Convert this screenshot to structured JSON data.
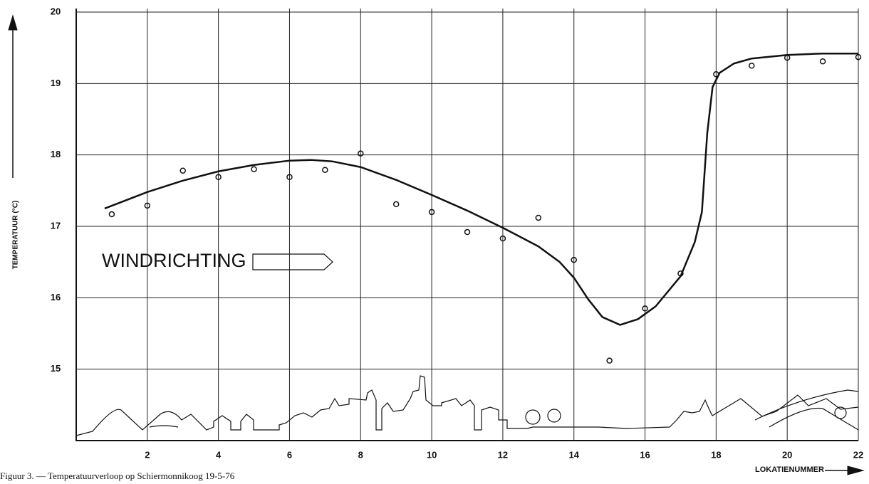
{
  "chart_data": {
    "type": "scatter",
    "ylabel": "TEMPERATUUR (°C)",
    "xlabel": "LOKATIENUMMER",
    "annotation": "WINDRICHTING",
    "caption": "Figuur 3. — Temperatuurverloop op Schiermonnikoog 19-5-76",
    "xlim": [
      0,
      22
    ],
    "xticks": [
      2,
      4,
      6,
      8,
      10,
      12,
      14,
      16,
      18,
      20,
      22
    ],
    "ylim": [
      14,
      20
    ],
    "yticks": [
      15,
      16,
      17,
      18,
      19,
      20
    ],
    "grid": true,
    "series": [
      {
        "type": "scatter",
        "color": "#111",
        "x": [
          1,
          2,
          3,
          4,
          5,
          6,
          7,
          8,
          9,
          10,
          11,
          12,
          13,
          14,
          15,
          16,
          17,
          18,
          19,
          20,
          21,
          22
        ],
        "values": [
          17.17,
          17.29,
          17.78,
          17.69,
          17.8,
          17.69,
          17.79,
          18.02,
          17.31,
          17.2,
          16.92,
          16.83,
          17.12,
          16.53,
          15.12,
          15.85,
          16.34,
          19.13,
          19.25,
          19.36,
          19.31,
          19.37
        ]
      },
      {
        "type": "line",
        "color": "#111",
        "x": [
          0.8,
          2,
          3,
          4,
          5,
          6,
          6.6,
          7.2,
          8,
          9,
          10,
          11,
          12,
          13,
          13.6,
          14,
          14.4,
          14.8,
          15.3,
          15.8,
          16.3,
          17,
          17.4,
          17.6,
          17.75,
          17.9,
          18.1,
          18.5,
          19,
          20,
          21,
          22
        ],
        "values": [
          17.25,
          17.48,
          17.64,
          17.77,
          17.86,
          17.92,
          17.93,
          17.91,
          17.83,
          17.65,
          17.44,
          17.22,
          16.98,
          16.72,
          16.5,
          16.28,
          15.98,
          15.73,
          15.62,
          15.7,
          15.88,
          16.3,
          16.78,
          17.2,
          18.3,
          18.95,
          19.15,
          19.28,
          19.35,
          19.4,
          19.42,
          19.42
        ]
      }
    ]
  }
}
